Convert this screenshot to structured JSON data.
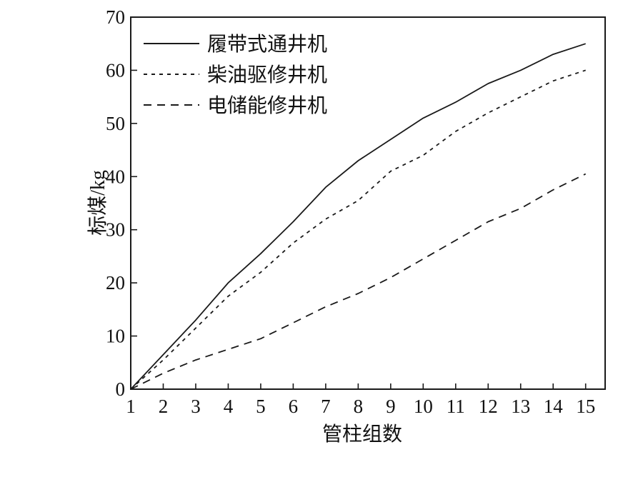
{
  "chart_data": {
    "type": "line",
    "title": "",
    "xlabel": "管柱组数",
    "ylabel": "标煤/kg",
    "x": [
      1,
      2,
      3,
      4,
      5,
      6,
      7,
      8,
      9,
      10,
      11,
      12,
      13,
      14,
      15
    ],
    "xlim": [
      1,
      15.6
    ],
    "ylim": [
      0,
      70
    ],
    "yticks": [
      0,
      10,
      20,
      30,
      40,
      50,
      60,
      70
    ],
    "grid": false,
    "legend_position": "top-left",
    "series": [
      {
        "name": "履带式通井机",
        "line_style": "solid",
        "color": "#1a1a1a",
        "values": [
          0,
          6.5,
          13,
          20,
          25.5,
          31.5,
          38,
          43,
          47,
          51,
          54,
          57.5,
          60,
          63,
          65
        ]
      },
      {
        "name": "柴油驱修井机",
        "line_style": "dotted",
        "color": "#1a1a1a",
        "values": [
          0,
          5.5,
          11.5,
          17.5,
          22,
          27.5,
          32,
          35.5,
          41,
          44,
          48.5,
          52,
          55,
          58,
          60
        ]
      },
      {
        "name": "电储能修井机",
        "line_style": "dashed",
        "color": "#1a1a1a",
        "values": [
          0,
          3,
          5.5,
          7.5,
          9.5,
          12.5,
          15.5,
          18,
          21,
          24.5,
          28,
          31.5,
          34,
          37.5,
          40.5
        ]
      }
    ]
  }
}
